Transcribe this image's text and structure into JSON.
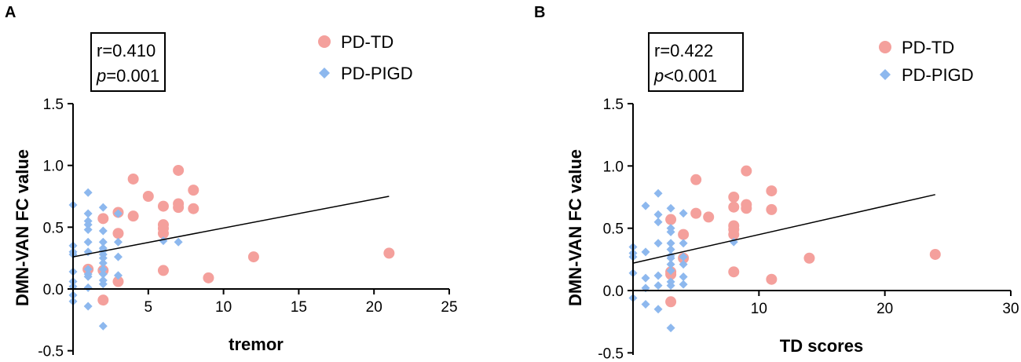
{
  "colors": {
    "td": "#F4A09C",
    "pigd": "#8DB8EE",
    "axis": "#000000"
  },
  "legend": {
    "td_label": "PD-TD",
    "pigd_label": "PD-PIGD"
  },
  "chart_data": [
    {
      "panel": "A",
      "type": "scatter",
      "xlabel": "tremor",
      "ylabel": "DMN-VAN FC value",
      "xlim": [
        0,
        25
      ],
      "ylim": [
        -0.5,
        1.5
      ],
      "xticks": [
        "5",
        "10",
        "15",
        "20",
        "25"
      ],
      "yticks": [
        "-0.5",
        "0.0",
        "0.5",
        "1.0",
        "1.5"
      ],
      "stats": {
        "r_text": "r=0.410",
        "p_symbol": "p",
        "p_rest": "=0.001"
      },
      "regression": {
        "x": [
          0,
          21
        ],
        "y": [
          0.26,
          0.75
        ]
      },
      "series": [
        {
          "name": "PD-TD",
          "points": [
            [
              1,
              0.16
            ],
            [
              2,
              0.57
            ],
            [
              2,
              0.15
            ],
            [
              2,
              -0.09
            ],
            [
              3,
              0.62
            ],
            [
              3,
              0.45
            ],
            [
              3,
              0.06
            ],
            [
              4,
              0.89
            ],
            [
              4,
              0.59
            ],
            [
              5,
              0.75
            ],
            [
              6,
              0.67
            ],
            [
              6,
              0.52
            ],
            [
              6,
              0.49
            ],
            [
              6,
              0.45
            ],
            [
              6,
              0.15
            ],
            [
              7,
              0.96
            ],
            [
              7,
              0.69
            ],
            [
              7,
              0.66
            ],
            [
              8,
              0.8
            ],
            [
              8,
              0.65
            ],
            [
              9,
              0.09
            ],
            [
              12,
              0.26
            ],
            [
              21,
              0.29
            ]
          ]
        },
        {
          "name": "PD-PIGD",
          "points": [
            [
              0,
              0.68
            ],
            [
              0,
              0.35
            ],
            [
              0,
              0.3
            ],
            [
              0,
              0.28
            ],
            [
              0,
              0.14
            ],
            [
              0,
              0.06
            ],
            [
              0,
              0.02
            ],
            [
              0,
              -0.05
            ],
            [
              0,
              -0.1
            ],
            [
              1,
              0.78
            ],
            [
              1,
              0.61
            ],
            [
              1,
              0.55
            ],
            [
              1,
              0.52
            ],
            [
              1,
              0.48
            ],
            [
              1,
              0.38
            ],
            [
              1,
              0.3
            ],
            [
              1,
              0.16
            ],
            [
              1,
              0.12
            ],
            [
              1,
              0.1
            ],
            [
              1,
              0.01
            ],
            [
              1,
              -0.14
            ],
            [
              2,
              0.66
            ],
            [
              2,
              0.47
            ],
            [
              2,
              0.38
            ],
            [
              2,
              0.33
            ],
            [
              2,
              0.31
            ],
            [
              2,
              0.28
            ],
            [
              2,
              0.25
            ],
            [
              2,
              0.21
            ],
            [
              2,
              0.16
            ],
            [
              2,
              0.12
            ],
            [
              2,
              0.07
            ],
            [
              2,
              0.04
            ],
            [
              2,
              -0.3
            ],
            [
              3,
              0.61
            ],
            [
              3,
              0.38
            ],
            [
              3,
              0.26
            ],
            [
              3,
              0.11
            ],
            [
              6,
              0.39
            ],
            [
              7,
              0.38
            ]
          ]
        }
      ]
    },
    {
      "panel": "B",
      "type": "scatter",
      "xlabel": "TD scores",
      "ylabel": "DMN-VAN FC value",
      "xlim": [
        0,
        30
      ],
      "ylim": [
        -0.5,
        1.5
      ],
      "xticks": [
        "10",
        "20",
        "30"
      ],
      "yticks": [
        "-0.5",
        "0.0",
        "0.5",
        "1.0",
        "1.5"
      ],
      "stats": {
        "r_text": "r=0.422",
        "p_symbol": "p",
        "p_rest": "<0.001"
      },
      "regression": {
        "x": [
          0,
          24
        ],
        "y": [
          0.22,
          0.77
        ]
      },
      "series": [
        {
          "name": "PD-TD",
          "points": [
            [
              3,
              0.57
            ],
            [
              3,
              0.15
            ],
            [
              3,
              -0.09
            ],
            [
              3,
              0.13
            ],
            [
              4,
              0.45
            ],
            [
              4,
              0.26
            ],
            [
              5,
              0.89
            ],
            [
              5,
              0.62
            ],
            [
              6,
              0.59
            ],
            [
              8,
              0.75
            ],
            [
              8,
              0.67
            ],
            [
              8,
              0.52
            ],
            [
              8,
              0.49
            ],
            [
              8,
              0.45
            ],
            [
              8,
              0.15
            ],
            [
              9,
              0.96
            ],
            [
              9,
              0.69
            ],
            [
              9,
              0.66
            ],
            [
              11,
              0.8
            ],
            [
              11,
              0.65
            ],
            [
              11,
              0.09
            ],
            [
              14,
              0.26
            ],
            [
              24,
              0.29
            ]
          ]
        },
        {
          "name": "PD-PIGD",
          "points": [
            [
              0,
              0.35
            ],
            [
              0,
              0.3
            ],
            [
              0,
              0.27
            ],
            [
              0,
              0.14
            ],
            [
              0,
              -0.06
            ],
            [
              1,
              0.68
            ],
            [
              1,
              0.31
            ],
            [
              1,
              0.1
            ],
            [
              1,
              0.02
            ],
            [
              1,
              -0.11
            ],
            [
              2,
              0.78
            ],
            [
              2,
              0.61
            ],
            [
              2,
              0.55
            ],
            [
              2,
              0.38
            ],
            [
              2,
              0.12
            ],
            [
              2,
              0.04
            ],
            [
              2,
              -0.15
            ],
            [
              3,
              0.66
            ],
            [
              3,
              0.5
            ],
            [
              3,
              0.47
            ],
            [
              3,
              0.38
            ],
            [
              3,
              0.33
            ],
            [
              3,
              0.28
            ],
            [
              3,
              0.26
            ],
            [
              3,
              0.21
            ],
            [
              3,
              0.16
            ],
            [
              3,
              0.07
            ],
            [
              3,
              0.04
            ],
            [
              3,
              -0.3
            ],
            [
              4,
              0.62
            ],
            [
              4,
              0.38
            ],
            [
              4,
              0.27
            ],
            [
              4,
              0.21
            ],
            [
              4,
              0.11
            ],
            [
              4,
              0.05
            ],
            [
              8,
              0.39
            ]
          ]
        }
      ]
    }
  ]
}
